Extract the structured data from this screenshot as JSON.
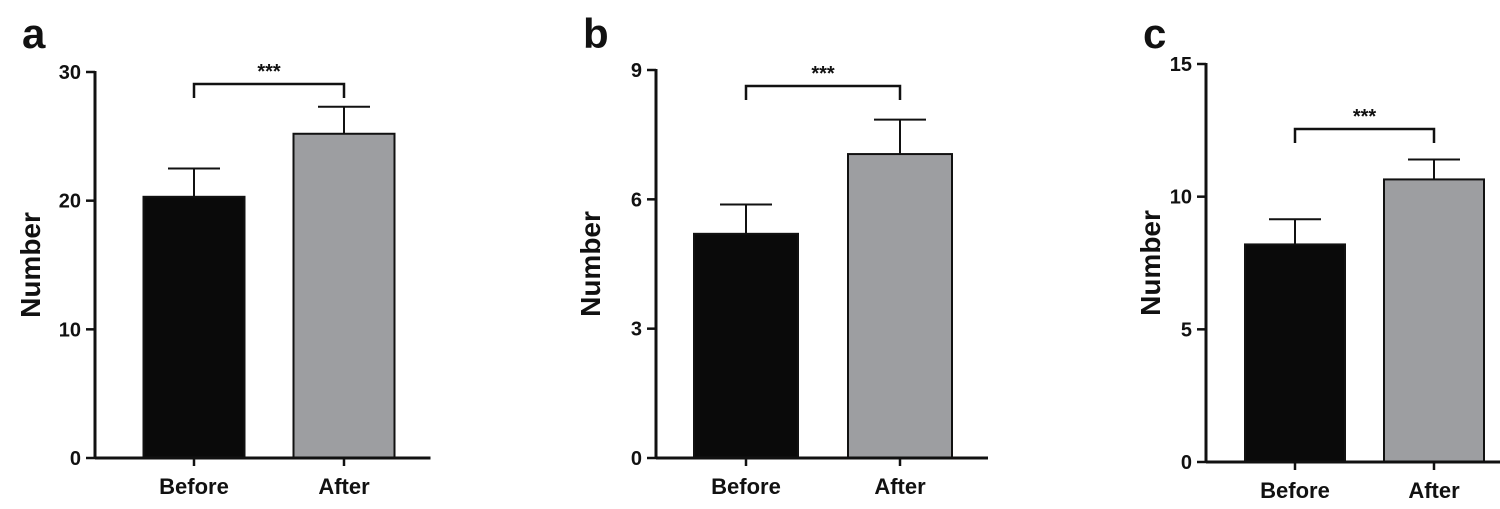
{
  "chart_data": [
    {
      "panel": "a",
      "type": "bar",
      "categories": [
        "Before",
        "After"
      ],
      "values": [
        20.3,
        25.2
      ],
      "errors": [
        2.2,
        2.1
      ],
      "bar_colors": [
        "#0a0a0a",
        "#9d9ea1"
      ],
      "ylabel": "Number",
      "ylim": [
        0,
        30
      ],
      "yticks": [
        0,
        10,
        20,
        30
      ],
      "significance": {
        "label": "***",
        "between": [
          0,
          1
        ]
      }
    },
    {
      "panel": "b",
      "type": "bar",
      "categories": [
        "Before",
        "After"
      ],
      "values": [
        5.2,
        7.05
      ],
      "errors": [
        0.68,
        0.8
      ],
      "bar_colors": [
        "#0a0a0a",
        "#9d9ea1"
      ],
      "ylabel": "Number",
      "ylim": [
        0,
        9
      ],
      "yticks": [
        0,
        3,
        6,
        9
      ],
      "significance": {
        "label": "***",
        "between": [
          0,
          1
        ]
      }
    },
    {
      "panel": "c",
      "type": "bar",
      "categories": [
        "Before",
        "After"
      ],
      "values": [
        8.2,
        10.65
      ],
      "errors": [
        0.95,
        0.75
      ],
      "bar_colors": [
        "#0a0a0a",
        "#9d9ea1"
      ],
      "ylabel": "Number",
      "ylim": [
        0,
        15
      ],
      "yticks": [
        0,
        5,
        10,
        15
      ],
      "significance": {
        "label": "***",
        "between": [
          0,
          1
        ]
      }
    }
  ]
}
